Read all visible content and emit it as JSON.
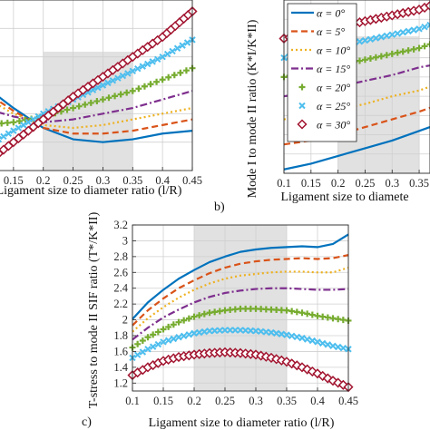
{
  "panel_labels": {
    "b": "b)",
    "c": "c)"
  },
  "legend": [
    {
      "alpha": "0",
      "color": "#0072bd",
      "style": "solid",
      "marker": "none"
    },
    {
      "alpha": "5",
      "color": "#d95319",
      "style": "dash",
      "marker": "none"
    },
    {
      "alpha": "10",
      "color": "#edb120",
      "style": "dot",
      "marker": "none"
    },
    {
      "alpha": "15",
      "color": "#7e2f8e",
      "style": "dashdot",
      "marker": "none"
    },
    {
      "alpha": "20",
      "color": "#77ac30",
      "style": "none",
      "marker": "plus"
    },
    {
      "alpha": "25",
      "color": "#4dbeee",
      "style": "none",
      "marker": "x"
    },
    {
      "alpha": "30",
      "color": "#a2142f",
      "style": "none",
      "marker": "diamond"
    }
  ],
  "chart_data": [
    {
      "id": "a",
      "type": "line",
      "xlabel": "Ligament size to diameter ratio (l/R)",
      "xticks": [
        "0.15",
        "0.2",
        "0.25",
        "0.3",
        "0.35",
        "0.4",
        "0.45"
      ],
      "xlim": [
        0.1,
        0.45
      ],
      "shaded_region": [
        0.2,
        0.35
      ],
      "grid": true,
      "series": [
        {
          "name": "α = 0°",
          "x": [
            0.1,
            0.15,
            0.2,
            0.25,
            0.3,
            0.35,
            0.4,
            0.45
          ],
          "y": [
            0.3,
            0.22,
            0.15,
            0.11,
            0.1,
            0.11,
            0.13,
            0.14
          ]
        },
        {
          "name": "α = 5°",
          "x": [
            0.1,
            0.15,
            0.2,
            0.25,
            0.3,
            0.35,
            0.4,
            0.45
          ],
          "y": [
            0.28,
            0.21,
            0.15,
            0.13,
            0.13,
            0.14,
            0.16,
            0.18
          ]
        },
        {
          "name": "α = 10°",
          "x": [
            0.1,
            0.15,
            0.2,
            0.25,
            0.3,
            0.35,
            0.4,
            0.45
          ],
          "y": [
            0.26,
            0.2,
            0.16,
            0.15,
            0.16,
            0.18,
            0.2,
            0.22
          ]
        },
        {
          "name": "α = 15°",
          "x": [
            0.1,
            0.15,
            0.2,
            0.25,
            0.3,
            0.35,
            0.4,
            0.45
          ],
          "y": [
            0.22,
            0.19,
            0.17,
            0.18,
            0.2,
            0.22,
            0.25,
            0.28
          ]
        },
        {
          "name": "α = 20°",
          "x": [
            0.1,
            0.15,
            0.2,
            0.25,
            0.3,
            0.35,
            0.4,
            0.45
          ],
          "y": [
            0.16,
            0.17,
            0.19,
            0.22,
            0.25,
            0.28,
            0.32,
            0.36
          ]
        },
        {
          "name": "α = 25°",
          "x": [
            0.1,
            0.15,
            0.2,
            0.25,
            0.3,
            0.35,
            0.4,
            0.45
          ],
          "y": [
            0.08,
            0.14,
            0.2,
            0.25,
            0.3,
            0.35,
            0.4,
            0.46
          ]
        },
        {
          "name": "α = 30°",
          "x": [
            0.1,
            0.15,
            0.2,
            0.25,
            0.3,
            0.35,
            0.4,
            0.45
          ],
          "y": [
            0.02,
            0.1,
            0.18,
            0.26,
            0.33,
            0.4,
            0.47,
            0.56
          ]
        }
      ]
    },
    {
      "id": "b",
      "type": "line",
      "ylabel": "Mode I to mode II ratio (K*I/K*II)",
      "xlabel": "Ligament size to diamete",
      "xticks": [
        "0.1",
        "0.15",
        "0.2",
        "0.25",
        "0.3",
        "0.35"
      ],
      "xlim": [
        0.1,
        0.37
      ],
      "shaded_region": [
        0.2,
        0.35
      ],
      "grid": true,
      "series": [
        {
          "name": "α = 0°",
          "x": [
            0.1,
            0.15,
            0.2,
            0.25,
            0.3,
            0.35,
            0.37
          ],
          "y": [
            0.02,
            0.05,
            0.09,
            0.13,
            0.17,
            0.22,
            0.24
          ]
        },
        {
          "name": "α = 5°",
          "x": [
            0.1,
            0.15,
            0.2,
            0.25,
            0.3,
            0.35,
            0.37
          ],
          "y": [
            0.15,
            0.17,
            0.2,
            0.24,
            0.28,
            0.32,
            0.34
          ]
        },
        {
          "name": "α = 10°",
          "x": [
            0.1,
            0.15,
            0.2,
            0.25,
            0.3,
            0.35,
            0.37
          ],
          "y": [
            0.28,
            0.3,
            0.33,
            0.36,
            0.4,
            0.43,
            0.45
          ]
        },
        {
          "name": "α = 15°",
          "x": [
            0.1,
            0.15,
            0.2,
            0.25,
            0.3,
            0.35,
            0.37
          ],
          "y": [
            0.4,
            0.42,
            0.45,
            0.48,
            0.51,
            0.55,
            0.56
          ]
        },
        {
          "name": "α = 20°",
          "x": [
            0.1,
            0.15,
            0.2,
            0.25,
            0.3,
            0.35,
            0.37
          ],
          "y": [
            0.5,
            0.53,
            0.56,
            0.59,
            0.62,
            0.65,
            0.67
          ]
        },
        {
          "name": "α = 25°",
          "x": [
            0.1,
            0.15,
            0.2,
            0.25,
            0.3,
            0.35,
            0.37
          ],
          "y": [
            0.6,
            0.63,
            0.66,
            0.69,
            0.72,
            0.75,
            0.77
          ]
        },
        {
          "name": "α = 30°",
          "x": [
            0.1,
            0.15,
            0.2,
            0.25,
            0.3,
            0.35,
            0.37
          ],
          "y": [
            0.7,
            0.73,
            0.76,
            0.79,
            0.82,
            0.85,
            0.87
          ]
        }
      ]
    },
    {
      "id": "c",
      "type": "line",
      "ylabel": "T-stress to mode II SIF ratio (T*/K*II)",
      "xlabel": "Ligament size to diameter ratio (l/R)",
      "xticks": [
        "0.1",
        "0.15",
        "0.2",
        "0.25",
        "0.3",
        "0.35",
        "0.4",
        "0.45"
      ],
      "yticks": [
        "1.2",
        "1.4",
        "1.6",
        "1.8",
        "2",
        "2.2",
        "2.4",
        "2.6",
        "2.8",
        "3",
        "3.2"
      ],
      "xlim": [
        0.1,
        0.45
      ],
      "ylim": [
        1.1,
        3.2
      ],
      "shaded_region": [
        0.2,
        0.35
      ],
      "grid": true,
      "series": [
        {
          "name": "α = 0°",
          "x": [
            0.1,
            0.125,
            0.15,
            0.175,
            0.2,
            0.225,
            0.25,
            0.275,
            0.3,
            0.325,
            0.35,
            0.375,
            0.4,
            0.425,
            0.45
          ],
          "y": [
            2.01,
            2.22,
            2.38,
            2.52,
            2.63,
            2.73,
            2.8,
            2.86,
            2.89,
            2.91,
            2.92,
            2.93,
            2.92,
            2.96,
            3.08
          ]
        },
        {
          "name": "α = 5°",
          "x": [
            0.1,
            0.125,
            0.15,
            0.175,
            0.2,
            0.225,
            0.25,
            0.275,
            0.3,
            0.325,
            0.35,
            0.375,
            0.4,
            0.425,
            0.45
          ],
          "y": [
            1.93,
            2.12,
            2.27,
            2.4,
            2.5,
            2.59,
            2.66,
            2.71,
            2.74,
            2.76,
            2.77,
            2.78,
            2.77,
            2.78,
            2.82
          ]
        },
        {
          "name": "α = 10°",
          "x": [
            0.1,
            0.125,
            0.15,
            0.175,
            0.2,
            0.225,
            0.25,
            0.275,
            0.3,
            0.325,
            0.35,
            0.375,
            0.4,
            0.425,
            0.45
          ],
          "y": [
            1.85,
            2.02,
            2.16,
            2.28,
            2.38,
            2.46,
            2.52,
            2.56,
            2.58,
            2.6,
            2.61,
            2.61,
            2.6,
            2.6,
            2.66
          ]
        },
        {
          "name": "α = 15°",
          "x": [
            0.1,
            0.125,
            0.15,
            0.175,
            0.2,
            0.225,
            0.25,
            0.275,
            0.3,
            0.325,
            0.35,
            0.375,
            0.4,
            0.425,
            0.45
          ],
          "y": [
            1.75,
            1.9,
            2.03,
            2.13,
            2.22,
            2.29,
            2.34,
            2.37,
            2.39,
            2.4,
            2.4,
            2.39,
            2.38,
            2.38,
            2.39
          ]
        },
        {
          "name": "α = 20°",
          "x": [
            0.1,
            0.125,
            0.15,
            0.175,
            0.2,
            0.225,
            0.25,
            0.275,
            0.3,
            0.325,
            0.35,
            0.375,
            0.4,
            0.425,
            0.45
          ],
          "y": [
            1.65,
            1.78,
            1.88,
            1.97,
            2.04,
            2.09,
            2.12,
            2.14,
            2.14,
            2.13,
            2.12,
            2.09,
            2.05,
            2.02,
            1.99
          ]
        },
        {
          "name": "α = 25°",
          "x": [
            0.1,
            0.125,
            0.15,
            0.175,
            0.2,
            0.225,
            0.25,
            0.275,
            0.3,
            0.325,
            0.35,
            0.375,
            0.4,
            0.425,
            0.45
          ],
          "y": [
            1.52,
            1.63,
            1.72,
            1.78,
            1.83,
            1.86,
            1.87,
            1.87,
            1.86,
            1.84,
            1.81,
            1.77,
            1.72,
            1.67,
            1.63
          ]
        },
        {
          "name": "α = 30°",
          "x": [
            0.1,
            0.125,
            0.15,
            0.175,
            0.2,
            0.225,
            0.25,
            0.275,
            0.3,
            0.325,
            0.35,
            0.375,
            0.4,
            0.425,
            0.45
          ],
          "y": [
            1.3,
            1.4,
            1.48,
            1.53,
            1.56,
            1.58,
            1.59,
            1.58,
            1.56,
            1.52,
            1.47,
            1.4,
            1.32,
            1.23,
            1.15
          ]
        }
      ]
    }
  ]
}
